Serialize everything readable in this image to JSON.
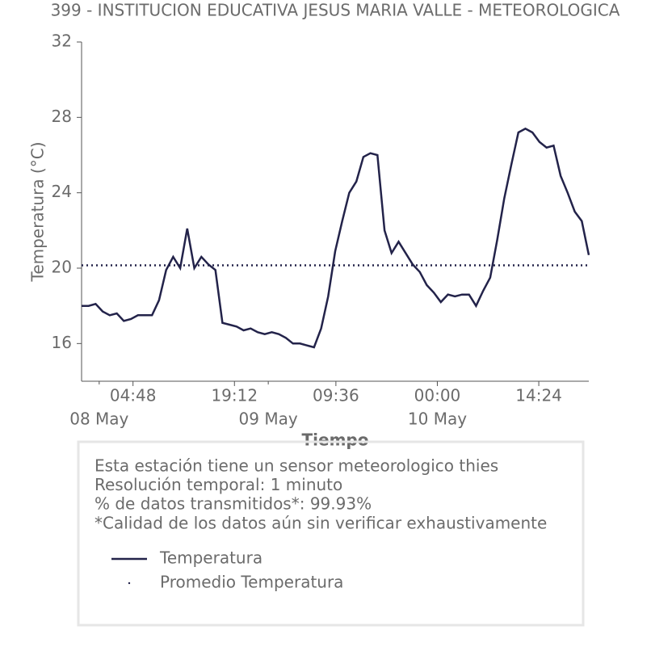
{
  "chart_data": {
    "type": "line",
    "title": "399 - INSTITUCION EDUCATIVA JESUS MARIA VALLE - METEOROLOGICA",
    "x_label": "Tiempo",
    "y_label": "Temperatura (°C)",
    "x": [
      "07 May 21:30",
      "07 May 22:30",
      "07 May 23:30",
      "08 May 00:30",
      "08 May 01:30",
      "08 May 02:30",
      "08 May 03:30",
      "08 May 04:30",
      "08 May 05:30",
      "08 May 06:30",
      "08 May 07:30",
      "08 May 08:30",
      "08 May 09:30",
      "08 May 10:30",
      "08 May 11:30",
      "08 May 12:30",
      "08 May 13:30",
      "08 May 14:30",
      "08 May 15:30",
      "08 May 16:30",
      "08 May 17:30",
      "08 May 18:30",
      "08 May 19:30",
      "08 May 20:30",
      "08 May 21:30",
      "08 May 22:30",
      "08 May 23:30",
      "09 May 00:30",
      "09 May 01:30",
      "09 May 02:30",
      "09 May 03:30",
      "09 May 04:30",
      "09 May 05:30",
      "09 May 06:30",
      "09 May 07:30",
      "09 May 08:30",
      "09 May 09:30",
      "09 May 10:30",
      "09 May 11:30",
      "09 May 12:30",
      "09 May 13:30",
      "09 May 14:30",
      "09 May 15:30",
      "09 May 16:30",
      "09 May 17:30",
      "09 May 18:30",
      "09 May 19:30",
      "09 May 20:30",
      "09 May 21:30",
      "09 May 22:30",
      "09 May 23:30",
      "10 May 00:30",
      "10 May 01:30",
      "10 May 02:30",
      "10 May 03:30",
      "10 May 04:30",
      "10 May 05:30",
      "10 May 06:30",
      "10 May 07:30",
      "10 May 08:30",
      "10 May 09:30",
      "10 May 10:30",
      "10 May 11:30",
      "10 May 12:30",
      "10 May 13:30",
      "10 May 14:30",
      "10 May 15:30",
      "10 May 16:30",
      "10 May 17:30",
      "10 May 18:30",
      "10 May 19:30",
      "10 May 20:30",
      "10 May 21:30"
    ],
    "series": [
      {
        "name": "Temperatura",
        "color": "#23234a",
        "values": [
          18.0,
          18.0,
          18.1,
          17.7,
          17.5,
          17.6,
          17.2,
          17.3,
          17.5,
          17.5,
          17.5,
          18.3,
          19.9,
          20.6,
          20.0,
          22.1,
          20.0,
          20.6,
          20.2,
          19.9,
          17.1,
          17.0,
          16.9,
          16.7,
          16.8,
          16.6,
          16.5,
          16.6,
          16.5,
          16.3,
          16.0,
          16.0,
          15.9,
          15.8,
          16.8,
          18.5,
          20.9,
          22.5,
          24.0,
          24.6,
          25.9,
          26.1,
          26.0,
          22.0,
          20.8,
          21.4,
          20.8,
          20.2,
          19.8,
          19.1,
          18.7,
          18.2,
          18.6,
          18.5,
          18.6,
          18.6,
          18.0,
          18.8,
          19.5,
          21.5,
          23.7,
          25.5,
          27.2,
          27.4,
          27.2,
          26.7,
          26.4,
          26.5,
          24.9,
          24.0,
          23.0,
          22.5,
          20.7
        ]
      },
      {
        "name": "Promedio Temperatura",
        "color": "#23234a",
        "style": "dotted",
        "value": 20.15
      }
    ],
    "xlim": [
      "07 May 21:30",
      "10 May 21:30"
    ],
    "xticks": [
      {
        "value": "08 May 04:48",
        "label": "04:48"
      },
      {
        "value": "08 May 19:12",
        "label": "19:12"
      },
      {
        "value": "09 May 09:36",
        "label": "09:36"
      },
      {
        "value": "10 May 00:00",
        "label": "00:00"
      },
      {
        "value": "10 May 14:24",
        "label": "14:24"
      }
    ],
    "xticks_minor": [
      {
        "value": "08 May 00:00",
        "label": "08 May"
      },
      {
        "value": "09 May 00:00",
        "label": "09 May"
      },
      {
        "value": "10 May 00:00",
        "label": "10 May"
      }
    ],
    "ylim": [
      14,
      32
    ],
    "yticks": [
      16,
      20,
      24,
      28,
      32
    ],
    "info": [
      "Esta estación tiene un sensor meteorologico thies",
      "Resolución temporal: 1 minuto",
      "% de datos transmitidos*: 99.93%",
      "*Calidad de los datos aún sin verificar exhaustivamente"
    ]
  }
}
